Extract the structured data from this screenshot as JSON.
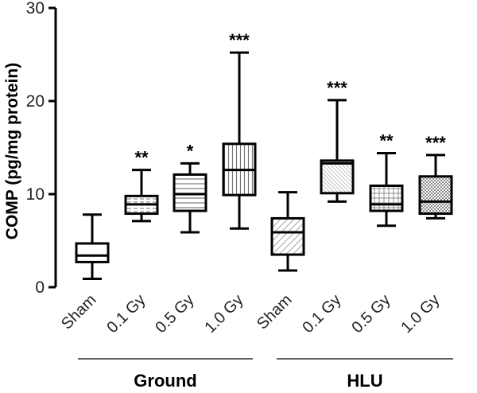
{
  "chart_data": {
    "type": "box",
    "ylabel": "COMP (pg/mg protein)",
    "ylim": [
      0,
      30
    ],
    "yticks": [
      0,
      10,
      20,
      30
    ],
    "grid": false,
    "groups": [
      {
        "name": "Ground",
        "categories": [
          "Sham",
          "0.1 Gy",
          "0.5 Gy",
          "1.0 Gy"
        ]
      },
      {
        "name": "HLU",
        "categories": [
          "Sham",
          "0.1 Gy",
          "0.5 Gy",
          "1.0 Gy"
        ]
      }
    ],
    "boxes": [
      {
        "group": "Ground",
        "category": "Sham",
        "min": 0.9,
        "q1": 2.7,
        "median": 3.4,
        "q3": 4.7,
        "max": 7.8,
        "significance": "",
        "pattern": "none"
      },
      {
        "group": "Ground",
        "category": "0.1 Gy",
        "min": 7.1,
        "q1": 7.9,
        "median": 8.9,
        "q3": 9.8,
        "max": 12.6,
        "significance": "**",
        "pattern": "hdash"
      },
      {
        "group": "Ground",
        "category": "0.5 Gy",
        "min": 5.9,
        "q1": 8.2,
        "median": 10.0,
        "q3": 12.1,
        "max": 13.3,
        "significance": "*",
        "pattern": "hlines"
      },
      {
        "group": "Ground",
        "category": "1.0 Gy",
        "min": 6.3,
        "q1": 9.9,
        "median": 12.6,
        "q3": 15.4,
        "max": 25.2,
        "significance": "***",
        "pattern": "vlines"
      },
      {
        "group": "HLU",
        "category": "Sham",
        "min": 1.8,
        "q1": 3.5,
        "median": 5.9,
        "q3": 7.4,
        "max": 10.2,
        "significance": "",
        "pattern": "diag"
      },
      {
        "group": "HLU",
        "category": "0.1 Gy",
        "min": 9.2,
        "q1": 10.1,
        "median": 13.3,
        "q3": 13.6,
        "max": 20.1,
        "significance": "***",
        "pattern": "diagdense"
      },
      {
        "group": "HLU",
        "category": "0.5 Gy",
        "min": 6.6,
        "q1": 8.2,
        "median": 8.9,
        "q3": 10.9,
        "max": 14.4,
        "significance": "**",
        "pattern": "grid"
      },
      {
        "group": "HLU",
        "category": "1.0 Gy",
        "min": 7.4,
        "q1": 7.9,
        "median": 9.2,
        "q3": 11.9,
        "max": 14.2,
        "significance": "***",
        "pattern": "dots"
      }
    ]
  }
}
